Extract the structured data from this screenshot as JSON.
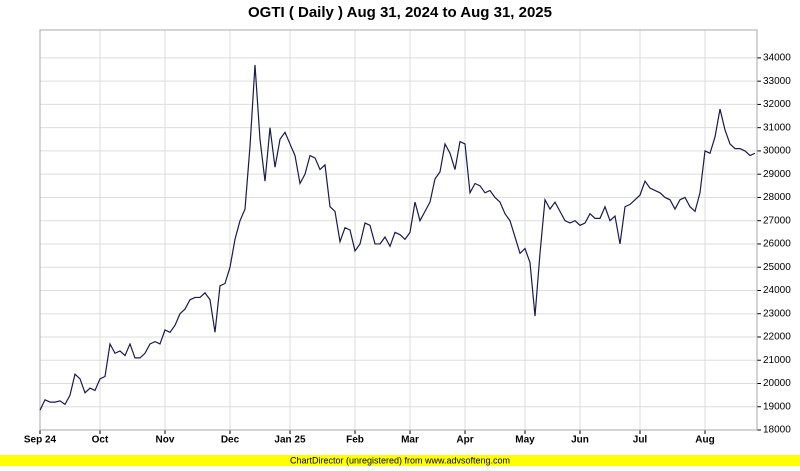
{
  "chart_data": {
    "type": "line",
    "title": "OGTI ( Daily ) Aug 31, 2024 to Aug 31, 2025",
    "footer": "ChartDirector (unregistered) from www.advsofteng.com",
    "color": "#1a1a50",
    "grid": true,
    "xlim": [
      0,
      143
    ],
    "xticks": [
      {
        "value": 0,
        "label": "Sep 24"
      },
      {
        "value": 12,
        "label": "Oct"
      },
      {
        "value": 25,
        "label": "Nov"
      },
      {
        "value": 38,
        "label": "Dec"
      },
      {
        "value": 50,
        "label": "Jan 25"
      },
      {
        "value": 63,
        "label": "Feb"
      },
      {
        "value": 74,
        "label": "Mar"
      },
      {
        "value": 85,
        "label": "Apr"
      },
      {
        "value": 97,
        "label": "May"
      },
      {
        "value": 108,
        "label": "Jun"
      },
      {
        "value": 120,
        "label": "Jul"
      },
      {
        "value": 133,
        "label": "Aug"
      }
    ],
    "ylim": [
      18000,
      35200
    ],
    "yticks": [
      18000,
      19000,
      20000,
      21000,
      22000,
      23000,
      24000,
      25000,
      26000,
      27000,
      28000,
      29000,
      30000,
      31000,
      32000,
      33000,
      34000
    ],
    "values": [
      18850,
      19300,
      19200,
      19200,
      19250,
      19100,
      19500,
      20400,
      20200,
      19600,
      19800,
      19700,
      20200,
      20300,
      21700,
      21300,
      21400,
      21200,
      21700,
      21100,
      21100,
      21300,
      21700,
      21800,
      21700,
      22300,
      22200,
      22500,
      23000,
      23200,
      23600,
      23700,
      23700,
      23900,
      23600,
      22200,
      24200,
      24300,
      25000,
      26200,
      27000,
      27500,
      30200,
      33700,
      30500,
      28700,
      31000,
      29300,
      30500,
      30800,
      30300,
      29800,
      28600,
      29000,
      29800,
      29700,
      29200,
      29400,
      27600,
      27400,
      26100,
      26700,
      26600,
      25700,
      26000,
      26900,
      26800,
      26000,
      26000,
      26300,
      25900,
      26500,
      26400,
      26200,
      26500,
      27800,
      27000,
      27400,
      27800,
      28800,
      29100,
      30300,
      29900,
      29200,
      30400,
      30300,
      28200,
      28600,
      28500,
      28200,
      28300,
      28000,
      27800,
      27300,
      27000,
      26300,
      25600,
      25800,
      25200,
      22900,
      25600,
      27900,
      27500,
      27800,
      27400,
      27000,
      26900,
      27000,
      26800,
      26900,
      27300,
      27100,
      27100,
      27600,
      27000,
      27200,
      26000,
      27600,
      27700,
      27900,
      28100,
      28700,
      28400,
      28300,
      28200,
      28000,
      27900,
      27500,
      27900,
      28000,
      27600,
      27400,
      28200,
      30000,
      29900,
      30600,
      31800,
      30900,
      30300,
      30100,
      30100,
      30000,
      29800,
      29900
    ]
  }
}
